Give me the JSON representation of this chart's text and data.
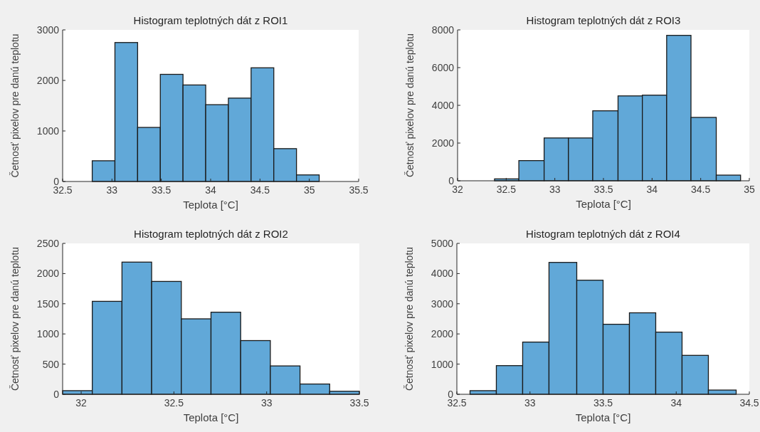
{
  "chart_data": [
    {
      "type": "histogram",
      "title": "Histogram teplotných dát z ROI1",
      "xlabel": "Teplota [°C]",
      "ylabel": "Četnosť pixelov pre danú teplotu",
      "color": "#61a8d8",
      "bins": [
        32.8,
        33.03,
        33.26,
        33.49,
        33.72,
        33.95,
        34.18,
        34.41,
        34.64,
        34.87,
        35.1
      ],
      "values": [
        410,
        2750,
        1070,
        2120,
        1910,
        1520,
        1650,
        2250,
        650,
        130
      ],
      "xlim": [
        32.5,
        35.5
      ],
      "xticks": [
        32.5,
        33,
        33.5,
        34,
        34.5,
        35,
        35.5
      ],
      "ylim": [
        0,
        3000
      ],
      "yticks": [
        0,
        1000,
        2000,
        3000
      ],
      "grid": false
    },
    {
      "type": "histogram",
      "title": "Histogram teplotných dát z ROI3",
      "xlabel": "Teplota [°C]",
      "ylabel": "Četnosť pixelov pre danú teplotu",
      "color": "#61a8d8",
      "bins": [
        32.38,
        32.63,
        32.89,
        33.14,
        33.39,
        33.65,
        33.9,
        34.15,
        34.4,
        34.66,
        34.91
      ],
      "values": [
        100,
        1070,
        2270,
        2270,
        3710,
        4500,
        4540,
        7710,
        3360,
        300
      ],
      "xlim": [
        32,
        35
      ],
      "xticks": [
        32,
        32.5,
        33,
        33.5,
        34,
        34.5,
        35
      ],
      "ylim": [
        0,
        8000
      ],
      "yticks": [
        0,
        2000,
        4000,
        6000,
        8000
      ],
      "grid": false
    },
    {
      "type": "histogram",
      "title": "Histogram teplotných dát z ROI2",
      "xlabel": "Teplota [°C]",
      "ylabel": "Četnosť pixelov pre danú teplotu",
      "color": "#61a8d8",
      "bins": [
        31.9,
        32.06,
        32.22,
        32.38,
        32.54,
        32.7,
        32.86,
        33.02,
        33.18,
        33.34,
        33.5
      ],
      "values": [
        60,
        1540,
        2190,
        1870,
        1250,
        1360,
        890,
        470,
        170,
        50
      ],
      "xlim": [
        31.9,
        33.5
      ],
      "xticks": [
        32,
        32.5,
        33,
        33.5
      ],
      "ylim": [
        0,
        2500
      ],
      "yticks": [
        0,
        500,
        1000,
        1500,
        2000,
        2500
      ],
      "grid": false
    },
    {
      "type": "histogram",
      "title": "Histogram teplotných dát z ROI4",
      "xlabel": "Teplota [°C]",
      "ylabel": "Četnosť pixelov pre danú teplotu",
      "color": "#61a8d8",
      "bins": [
        32.59,
        32.77,
        32.95,
        33.13,
        33.32,
        33.5,
        33.68,
        33.86,
        34.04,
        34.22,
        34.41
      ],
      "values": [
        120,
        950,
        1730,
        4370,
        3780,
        2320,
        2700,
        2060,
        1290,
        140
      ],
      "xlim": [
        32.5,
        34.5
      ],
      "xticks": [
        32.5,
        33,
        33.5,
        34,
        34.5
      ],
      "ylim": [
        0,
        5000
      ],
      "yticks": [
        0,
        1000,
        2000,
        3000,
        4000,
        5000
      ],
      "grid": false
    }
  ]
}
